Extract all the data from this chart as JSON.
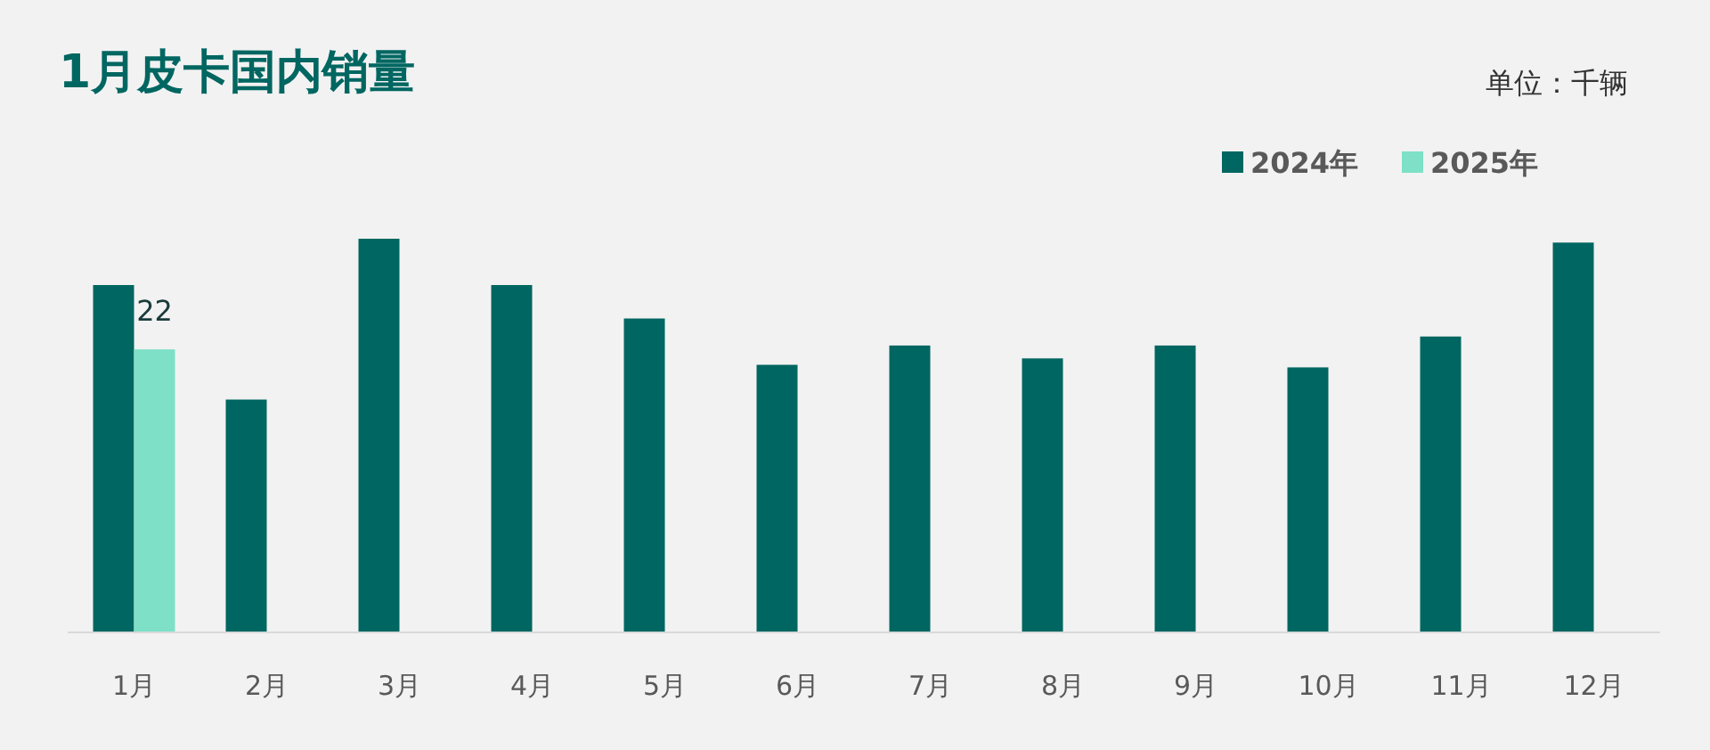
{
  "chart_data": {
    "type": "bar",
    "title": "1月皮卡国内销量",
    "annotations": [
      "单位：千辆"
    ],
    "categories": [
      "1月",
      "2月",
      "3月",
      "4月",
      "5月",
      "6月",
      "7月",
      "8月",
      "9月",
      "10月",
      "11月",
      "12月"
    ],
    "series": [
      {
        "name": "2024年",
        "color": "#006661",
        "values": [
          27.0,
          18.1,
          30.6,
          27.0,
          24.4,
          20.8,
          22.3,
          21.3,
          22.3,
          20.6,
          23.0,
          30.3
        ]
      },
      {
        "name": "2025年",
        "color": "#7de0c7",
        "values": [
          22,
          null,
          null,
          null,
          null,
          null,
          null,
          null,
          null,
          null,
          null,
          null
        ],
        "value_labels": [
          "22",
          null,
          null,
          null,
          null,
          null,
          null,
          null,
          null,
          null,
          null,
          null
        ]
      }
    ],
    "tick_labels": "x",
    "legend": "top right"
  }
}
